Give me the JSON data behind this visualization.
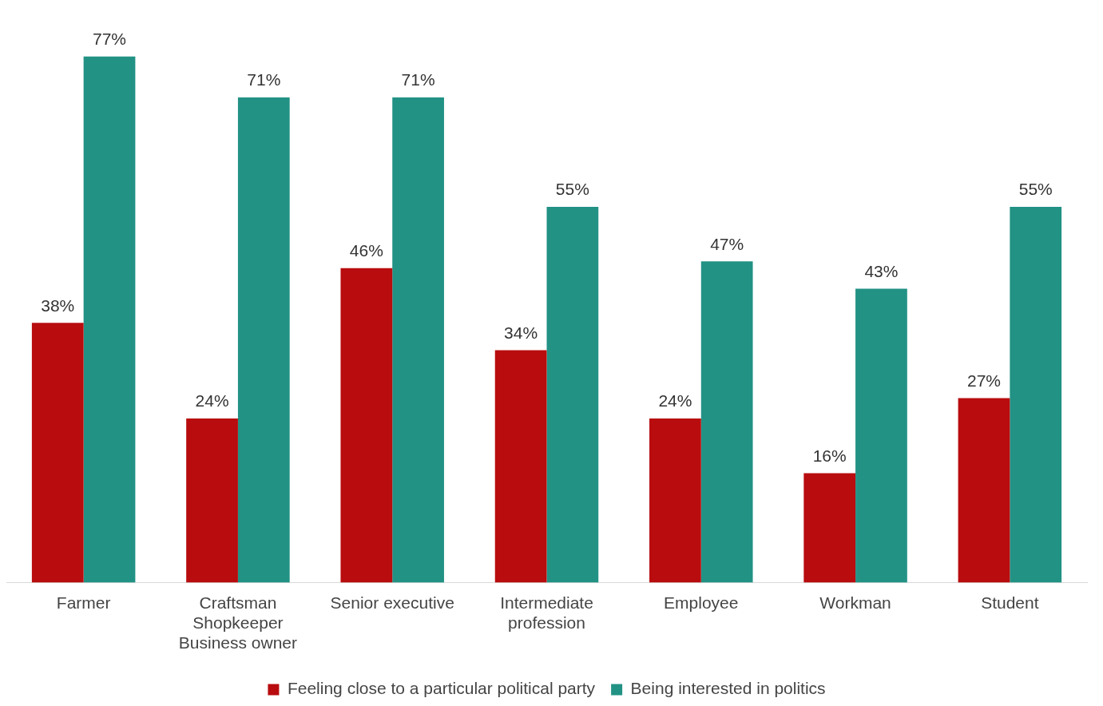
{
  "chart_data": {
    "type": "bar",
    "categories": [
      "Farmer",
      "Craftsman\nShopkeeper\nBusiness owner",
      "Senior executive",
      "Intermediate\nprofession",
      "Employee",
      "Workman",
      "Student"
    ],
    "series": [
      {
        "name": "Feeling close to a particular political party",
        "color": "#b80c0e",
        "values": [
          38,
          24,
          46,
          34,
          24,
          16,
          27
        ],
        "value_labels": [
          "38%",
          "24%",
          "46%",
          "34%",
          "24%",
          "16%",
          "27%"
        ]
      },
      {
        "name": "Being interested in politics",
        "color": "#229285",
        "values": [
          77,
          71,
          71,
          55,
          47,
          43,
          55
        ],
        "value_labels": [
          "77%",
          "71%",
          "71%",
          "55%",
          "47%",
          "43%",
          "55%"
        ]
      }
    ],
    "grid": false,
    "legend": "bottom"
  }
}
